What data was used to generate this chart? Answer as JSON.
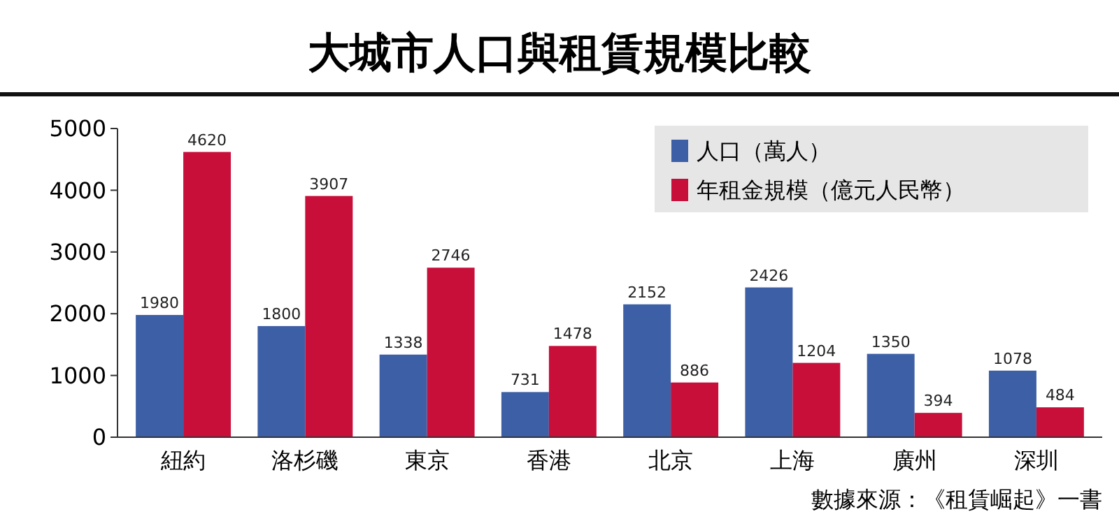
{
  "chart_data": {
    "type": "bar",
    "title": "大城市人口與租賃規模比較",
    "categories": [
      "紐約",
      "洛杉磯",
      "東京",
      "香港",
      "北京",
      "上海",
      "廣州",
      "深圳"
    ],
    "series": [
      {
        "name": "人口（萬人）",
        "color": "#3d5fa6",
        "values": [
          1980,
          1800,
          1338,
          731,
          2152,
          2426,
          1350,
          1078
        ]
      },
      {
        "name": "年租金規模（億元人民幣）",
        "color": "#c70f3a",
        "values": [
          4620,
          3907,
          2746,
          1478,
          886,
          1204,
          394,
          484
        ]
      }
    ],
    "ylim": [
      0,
      5000
    ],
    "yticks": [
      0,
      1000,
      2000,
      3000,
      4000,
      5000
    ],
    "grid": false,
    "legend": "top right",
    "data_labels": true,
    "annotations": [
      "數據來源：《租賃崛起》一書"
    ]
  }
}
